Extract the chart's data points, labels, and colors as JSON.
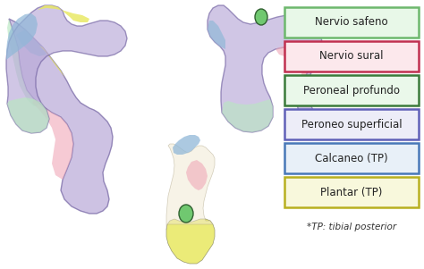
{
  "legend_items": [
    {
      "label": "Nervio safeno",
      "border_color": "#6db86d",
      "fill_color": "#e8f8e8"
    },
    {
      "label": "Nervio sural",
      "border_color": "#c03050",
      "fill_color": "#fce8ec"
    },
    {
      "label": "Peroneal profundo",
      "border_color": "#3a7a3a",
      "fill_color": "#eaf8ea"
    },
    {
      "label": "Peroneo superficial",
      "border_color": "#6060b8",
      "fill_color": "#ededf8"
    },
    {
      "label": "Calcaneo (TP)",
      "border_color": "#4878b8",
      "fill_color": "#e8f0f8"
    },
    {
      "label": "Plantar (TP)",
      "border_color": "#b8b020",
      "fill_color": "#f8f8dc"
    }
  ],
  "footnote": "*TP: tibial posterior",
  "bg_color": "#ffffff",
  "font_size": 8.5,
  "footnote_size": 7.5,
  "colors": {
    "safeno": "#b8e8c0",
    "sural": "#f0a8b8",
    "peroneal_prof": "#70c870",
    "peroneo_sup": "#b8a8d8",
    "calcaneo": "#90b8d8",
    "plantar": "#e8e860",
    "pink_med": "#f0b0c0",
    "yellow_sol": "#e8e050",
    "green_dot": "#40a840",
    "blue_heel": "#90b8e0",
    "outline": "#888888"
  }
}
